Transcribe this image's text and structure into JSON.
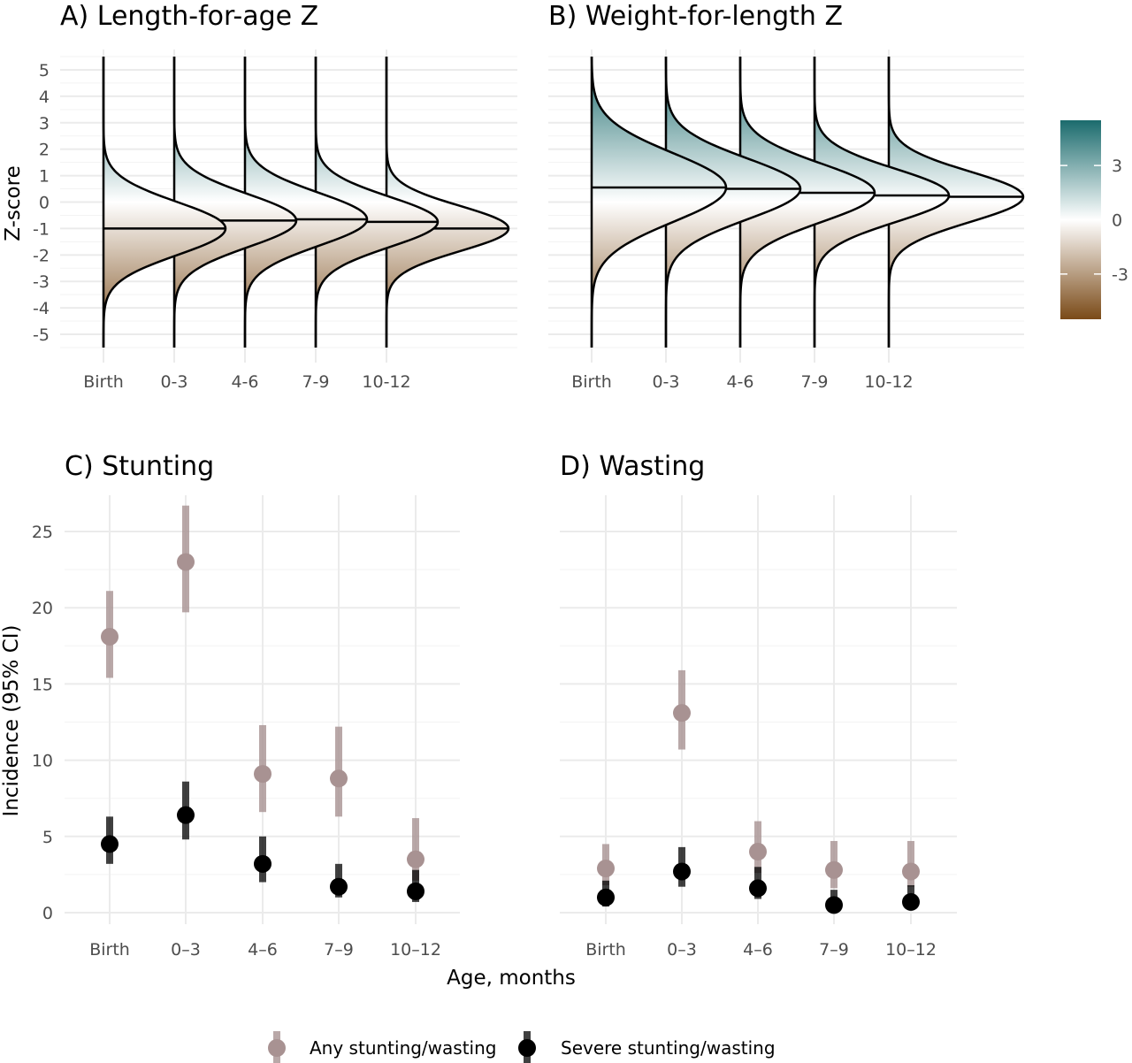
{
  "colors": {
    "any": "#a89292",
    "severe": "#000000",
    "grad_high": "#1b6b6d",
    "grad_mid": "#ffffff",
    "grad_low": "#7a4a17",
    "grid": "#ebebeb"
  },
  "legend": {
    "any_label": "Any stunting/wasting",
    "severe_label": "Severe stunting/wasting"
  },
  "colorbar": {
    "ticks": [
      3,
      0,
      -3
    ],
    "range": [
      -5.5,
      5.5
    ]
  },
  "chart_data": [
    {
      "type": "ridgeline",
      "title": "A) Length-for-age Z",
      "ylabel": "Z-score",
      "categories": [
        "Birth",
        "0-3",
        "4-6",
        "7-9",
        "10-12"
      ],
      "ylim": [
        -5.5,
        5.5
      ],
      "yticks": [
        5,
        4,
        3,
        2,
        1,
        0,
        -1,
        -2,
        -3,
        -4,
        -5
      ],
      "medians": [
        -1.0,
        -0.7,
        -0.65,
        -0.75,
        -1.0
      ],
      "sd": [
        1.0,
        1.0,
        1.0,
        0.95,
        0.85
      ]
    },
    {
      "type": "ridgeline",
      "title": "B) Weight-for-length Z",
      "categories": [
        "Birth",
        "0-3",
        "4-6",
        "7-9",
        "10-12"
      ],
      "ylim": [
        -5.5,
        5.5
      ],
      "medians": [
        0.55,
        0.5,
        0.35,
        0.25,
        0.2
      ],
      "sd": [
        1.3,
        1.15,
        1.1,
        1.0,
        0.95
      ]
    },
    {
      "type": "scatter",
      "title": "C) Stunting",
      "ylabel": "Incidence (95% CI)",
      "categories": [
        "Birth",
        "0–3",
        "4–6",
        "7–9",
        "10–12"
      ],
      "ylim": [
        0,
        27
      ],
      "yticks": [
        0,
        5,
        10,
        15,
        20,
        25
      ],
      "series": [
        {
          "name": "Any stunting/wasting",
          "values": [
            18.1,
            23.0,
            9.1,
            8.8,
            3.5
          ],
          "lower": [
            15.4,
            19.7,
            6.6,
            6.3,
            2.1
          ],
          "upper": [
            21.1,
            26.7,
            12.3,
            12.2,
            6.2
          ]
        },
        {
          "name": "Severe stunting/wasting",
          "values": [
            4.5,
            6.4,
            3.2,
            1.7,
            1.4
          ],
          "lower": [
            3.2,
            4.8,
            2.0,
            1.0,
            0.7
          ],
          "upper": [
            6.3,
            8.6,
            5.0,
            3.2,
            2.8
          ]
        }
      ]
    },
    {
      "type": "scatter",
      "title": "D) Wasting",
      "xlabel": "Age, months",
      "categories": [
        "Birth",
        "0–3",
        "4–6",
        "7–9",
        "10–12"
      ],
      "ylim": [
        0,
        27
      ],
      "series": [
        {
          "name": "Any stunting/wasting",
          "values": [
            2.9,
            13.1,
            4.0,
            2.8,
            2.7
          ],
          "lower": [
            1.8,
            10.7,
            2.6,
            1.6,
            1.7
          ],
          "upper": [
            4.5,
            15.9,
            6.0,
            4.7,
            4.7
          ]
        },
        {
          "name": "Severe stunting/wasting",
          "values": [
            1.0,
            2.7,
            1.6,
            0.5,
            0.7
          ],
          "lower": [
            0.4,
            1.7,
            0.9,
            0.2,
            0.3
          ],
          "upper": [
            2.1,
            4.3,
            3.0,
            1.5,
            1.8
          ]
        }
      ]
    }
  ]
}
